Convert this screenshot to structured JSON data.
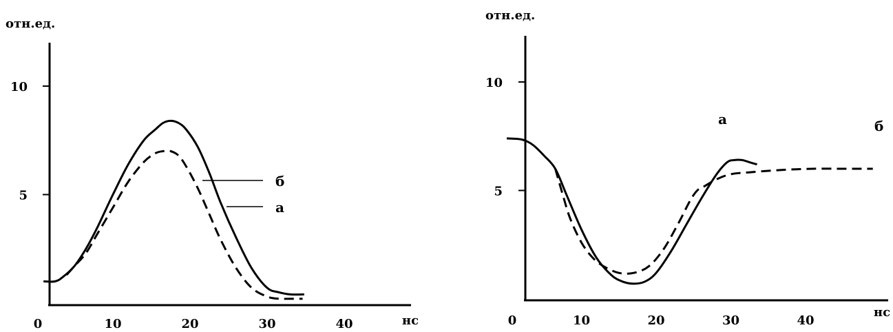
{
  "chart_data": [
    {
      "type": "line",
      "ylabel": "отн.ед.",
      "xlabel": "нс",
      "origin_label": "0",
      "x_ticks": [
        10,
        20,
        30,
        40
      ],
      "x_tick_labels": [
        "10",
        "20",
        "30",
        "40"
      ],
      "y_ticks": [
        5,
        10
      ],
      "y_tick_labels": [
        "5",
        "10"
      ],
      "xlim": [
        0,
        46
      ],
      "ylim": [
        0,
        10
      ],
      "series": [
        {
          "name": "а",
          "style": "solid",
          "x": [
            1.0,
            2.5,
            3.5,
            5.0,
            6.5,
            8.0,
            10.0,
            12.0,
            14.0,
            15.5,
            16.5,
            17.5,
            18.5,
            19.5,
            21.0,
            22.5,
            24.0,
            26.0,
            28.0,
            30.0,
            31.5,
            33.0,
            34.8
          ],
          "y": [
            1.0,
            1.0,
            1.2,
            1.7,
            2.5,
            3.5,
            5.0,
            6.4,
            7.5,
            8.0,
            8.3,
            8.4,
            8.3,
            8.0,
            7.2,
            6.0,
            4.6,
            3.0,
            1.6,
            0.7,
            0.5,
            0.4,
            0.4
          ]
        },
        {
          "name": "б",
          "style": "dashed",
          "x": [
            4.0,
            5.0,
            6.5,
            8.0,
            10.0,
            12.0,
            14.0,
            15.5,
            16.5,
            17.5,
            18.5,
            19.5,
            21.0,
            22.5,
            24.0,
            26.0,
            28.0,
            30.0,
            31.5,
            33.0,
            34.6
          ],
          "y": [
            1.3,
            1.7,
            2.3,
            3.2,
            4.4,
            5.6,
            6.5,
            6.9,
            7.0,
            7.0,
            6.8,
            6.3,
            5.3,
            4.1,
            2.9,
            1.6,
            0.7,
            0.3,
            0.2,
            0.2,
            0.2
          ]
        }
      ],
      "annotations": [
        {
          "text": "б",
          "series": "б",
          "anchor_x": 23.3,
          "anchor_y": 4.6
        },
        {
          "text": "а",
          "series": "а",
          "anchor_x": 26.8,
          "anchor_y": 3.75
        }
      ]
    },
    {
      "type": "line",
      "ylabel": "отн.ед.",
      "xlabel": "нс",
      "origin_label": "0",
      "x_ticks": [
        10,
        20,
        30,
        40
      ],
      "x_tick_labels": [
        "10",
        "20",
        "30",
        "40"
      ],
      "y_ticks": [
        5,
        10
      ],
      "y_tick_labels": [
        "5",
        "10"
      ],
      "xlim": [
        0,
        50
      ],
      "ylim": [
        0,
        10
      ],
      "series": [
        {
          "name": "а",
          "style": "solid",
          "x": [
            0.0,
            2.0,
            3.5,
            5.0,
            6.5,
            8.0,
            10.0,
            12.0,
            14.0,
            15.5,
            17.0,
            18.5,
            20.0,
            22.0,
            24.0,
            26.0,
            28.0,
            29.5,
            30.5,
            31.5,
            32.5,
            33.5
          ],
          "y": [
            7.4,
            7.35,
            7.1,
            6.6,
            6.0,
            4.8,
            3.2,
            1.9,
            1.1,
            0.8,
            0.7,
            0.8,
            1.2,
            2.2,
            3.4,
            4.6,
            5.7,
            6.3,
            6.4,
            6.4,
            6.3,
            6.2
          ]
        },
        {
          "name": "б",
          "style": "dashed",
          "x": [
            6.5,
            7.5,
            8.5,
            10.0,
            11.5,
            13.0,
            15.0,
            17.0,
            19.0,
            21.0,
            23.0,
            24.5,
            25.5,
            26.5,
            28.0,
            30.0,
            33.0,
            37.0,
            41.0,
            45.0,
            48.0,
            49.0
          ],
          "y": [
            6.0,
            4.8,
            3.7,
            2.6,
            1.9,
            1.5,
            1.2,
            1.2,
            1.5,
            2.3,
            3.5,
            4.5,
            5.0,
            5.2,
            5.5,
            5.75,
            5.85,
            5.95,
            6.0,
            6.0,
            6.0,
            6.0
          ]
        }
      ],
      "annotations": [
        {
          "text": "а",
          "series": "а",
          "anchor_x": 30.0,
          "anchor_y": 6.5
        },
        {
          "text": "б",
          "series": "б",
          "anchor_x": 47.5,
          "anchor_y": 6.3
        }
      ]
    }
  ]
}
